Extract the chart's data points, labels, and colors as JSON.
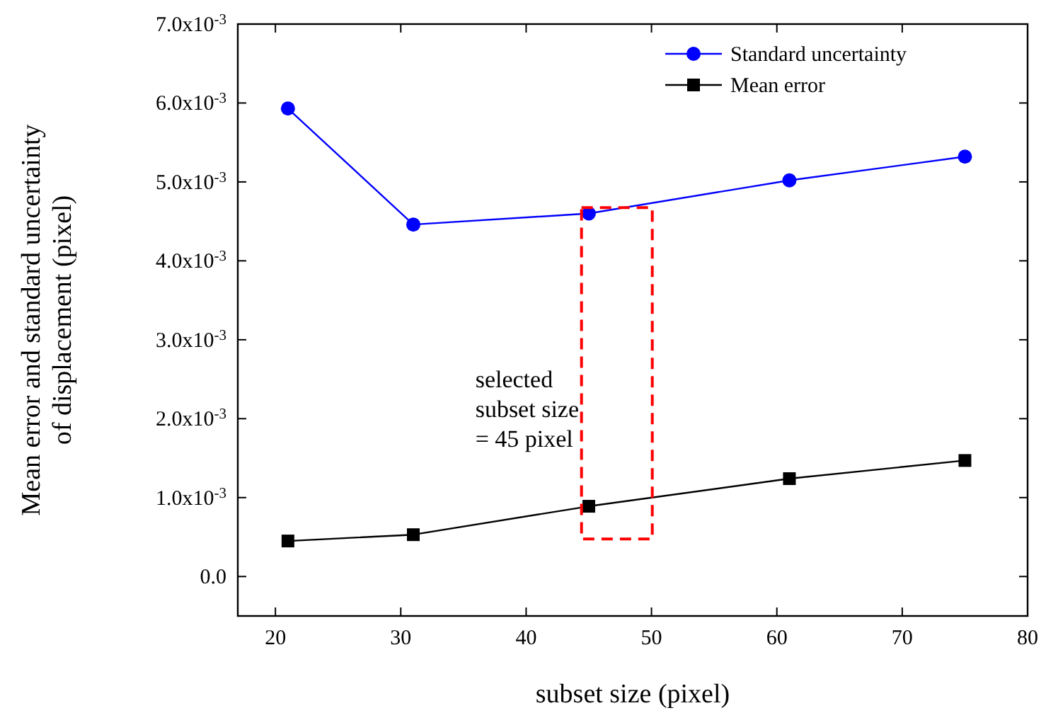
{
  "chart_data": {
    "type": "line",
    "xlabel": "subset size (pixel)",
    "ylabel": "Mean error and standard uncertainty\nof displacement (pixel)",
    "xlim": [
      17,
      80
    ],
    "xticks": [
      20,
      30,
      40,
      50,
      60,
      70,
      80
    ],
    "ylim": [
      -0.0005,
      0.007
    ],
    "yticks": [
      {
        "value": 0,
        "label": "0.0"
      },
      {
        "value": 0.001,
        "label": "1.0x10$^{-3}$"
      },
      {
        "value": 0.002,
        "label": "2.0x10$^{-3}$"
      },
      {
        "value": 0.003,
        "label": "3.0x10$^{-3}$"
      },
      {
        "value": 0.004,
        "label": "4.0x10$^{-3}$"
      },
      {
        "value": 0.005,
        "label": "5.0x10$^{-3}$"
      },
      {
        "value": 0.006,
        "label": "6.0x10$^{-3}$"
      },
      {
        "value": 0.007,
        "label": "7.0x10$^{-3}$"
      }
    ],
    "x": [
      21,
      31,
      45,
      61,
      75
    ],
    "series": [
      {
        "name": "Standard uncertainty",
        "color": "#0000ff",
        "marker": "circle",
        "values": [
          0.00593,
          0.00446,
          0.0046,
          0.00502,
          0.00532
        ]
      },
      {
        "name": "Mean error",
        "color": "#000000",
        "marker": "square",
        "values": [
          0.00045,
          0.00053,
          0.00089,
          0.00124,
          0.00147
        ]
      }
    ],
    "legend": "top right",
    "grid": false,
    "annotations": [
      "selected\nsubset size\n= 45 pixel"
    ]
  }
}
